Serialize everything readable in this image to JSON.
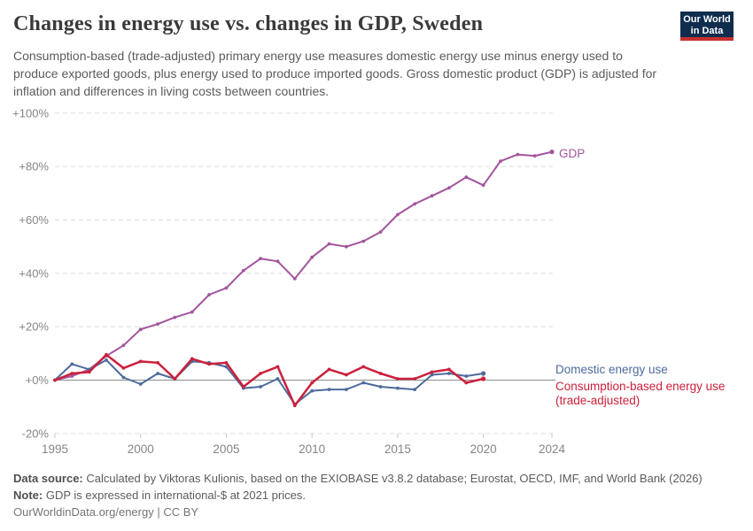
{
  "header": {
    "title": "Changes in energy use vs. changes in GDP, Sweden",
    "subtitle": "Consumption-based (trade-adjusted) primary energy use measures domestic energy use minus energy used to produce exported goods, plus energy used to produce imported goods. Gross domestic product (GDP) is adjusted for inflation and differences in living costs between countries.",
    "logo_line1": "Our World",
    "logo_line2": "in Data"
  },
  "chart_data": {
    "type": "line",
    "title": "Changes in energy use vs. changes in GDP, Sweden",
    "x": [
      1995,
      1996,
      1997,
      1998,
      1999,
      2000,
      2001,
      2002,
      2003,
      2004,
      2005,
      2006,
      2007,
      2008,
      2009,
      2010,
      2011,
      2012,
      2013,
      2014,
      2015,
      2016,
      2017,
      2018,
      2019,
      2020,
      2021,
      2022,
      2023,
      2024
    ],
    "series": [
      {
        "name": "GDP",
        "color": "#a2559c",
        "stroke_width": 2,
        "values": [
          0,
          1.5,
          4,
          9,
          13,
          19,
          21,
          23.5,
          25.5,
          32,
          34.5,
          41,
          45.5,
          44.5,
          38,
          46,
          51,
          50,
          52,
          55.5,
          62,
          66,
          69,
          72,
          76,
          73,
          82,
          84.5,
          84,
          85.5
        ]
      },
      {
        "name": "Domestic energy use",
        "color": "#4c6a9c",
        "stroke_width": 2,
        "values": [
          0,
          6,
          4,
          7.5,
          1,
          -1.5,
          2.5,
          0.5,
          7,
          6.5,
          5,
          -3,
          -2.5,
          0.5,
          -9,
          -4,
          -3.5,
          -3.5,
          -1,
          -2.5,
          -3,
          -3.5,
          2,
          2.5,
          1.5,
          2.5,
          null,
          null,
          null,
          null
        ]
      },
      {
        "name": "Consumption-based energy use (trade-adjusted)",
        "color": "#cc203c",
        "stroke_width": 2.5,
        "values": [
          0,
          2.5,
          3,
          9.5,
          4.5,
          7,
          6.5,
          0.5,
          8,
          6,
          6.5,
          -2.5,
          2.5,
          5,
          -9.5,
          -1,
          4,
          2,
          5,
          2.5,
          0.5,
          0.5,
          3,
          4,
          -1,
          0.5,
          null,
          null,
          null,
          null
        ]
      }
    ],
    "axes": {
      "ylim": [
        -20,
        100
      ],
      "grid": "dashed-horizontal",
      "yticks": [
        {
          "label": "+100%",
          "value": 100
        },
        {
          "label": "+80%",
          "value": 80
        },
        {
          "label": "+60%",
          "value": 60
        },
        {
          "label": "+40%",
          "value": 40
        },
        {
          "label": "+20%",
          "value": 20
        },
        {
          "label": "+0%",
          "value": 0
        },
        {
          "label": "-20%",
          "value": -20
        }
      ],
      "xticks": [
        {
          "label": "1995",
          "year": 1995
        },
        {
          "label": "2000",
          "year": 2000
        },
        {
          "label": "2005",
          "year": 2005
        },
        {
          "label": "2010",
          "year": 2010
        },
        {
          "label": "2015",
          "year": 2015
        },
        {
          "label": "2020",
          "year": 2020
        },
        {
          "label": "2024",
          "year": 2024
        }
      ]
    },
    "legend_position": "end-of-line-labels"
  },
  "footer": {
    "data_source_label": "Data source:",
    "data_source_text": " Calculated by Viktoras Kulionis, based on the EXIOBASE v3.8.2 database; Eurostat, OECD, IMF, and World Bank (2026)",
    "note_label": "Note:",
    "note_text": " GDP is expressed in international-$ at 2021 prices.",
    "url": "OurWorldinData.org/energy",
    "divider": " | ",
    "license": "CC BY"
  }
}
